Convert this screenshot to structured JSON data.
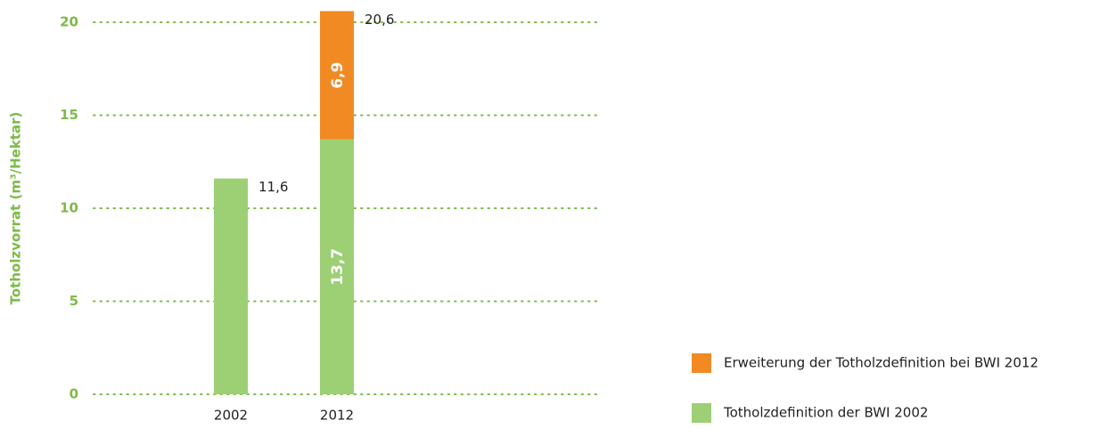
{
  "chart_data": {
    "type": "stacked_bar",
    "y_label": "Totholzvorrat (m³/Hektar)",
    "categories": [
      "2002",
      "2012"
    ],
    "series": [
      {
        "name": "Totholzdefinition der BWI 2002",
        "color": "#9dcf74",
        "values": [
          11.6,
          13.7
        ],
        "value_labels": [
          null,
          "13,7"
        ]
      },
      {
        "name": "Erweiterung der Totholzdefinition bei BWI 2012",
        "color": "#f28a24",
        "values": [
          null,
          6.9
        ],
        "value_labels": [
          null,
          "6,9"
        ]
      }
    ],
    "totals": [
      11.6,
      20.6
    ],
    "total_labels": [
      "11,6",
      "20,6"
    ],
    "ylim": [
      0,
      20
    ],
    "yticks": [
      0,
      5,
      10,
      15,
      20
    ],
    "grid": true,
    "legend": "lower right"
  }
}
